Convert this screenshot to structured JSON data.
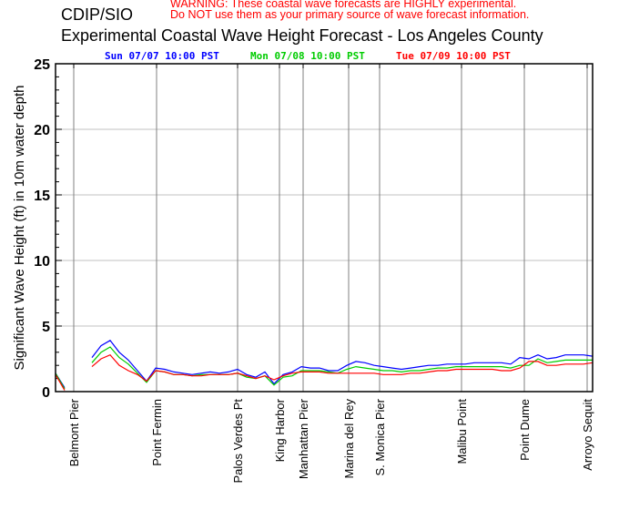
{
  "header": {
    "organization": "CDIP/SIO",
    "warning_line1": "WARNING:  These coastal wave forecasts are HIGHLY experimental.",
    "warning_line2": "Do NOT use them as your primary source of wave forecast information.",
    "title": "Experimental Coastal Wave Height Forecast - Los Angeles County"
  },
  "colors": {
    "warning": "#ff0000",
    "grid": "#c0c0c0",
    "station_line": "#808080"
  },
  "chart_data": {
    "type": "line",
    "title": "Experimental Coastal Wave Height Forecast - Los Angeles County",
    "ylabel": "Significant Wave Height (ft) in 10m water depth",
    "xlabel": "",
    "ylim": [
      0,
      25
    ],
    "yticks": [
      "0",
      "5",
      "10",
      "15",
      "20",
      "25"
    ],
    "grid": "horizontal",
    "stations": [
      {
        "name": "Belmont Pier",
        "at": 2.0
      },
      {
        "name": "Point Fermin",
        "at": 11.1
      },
      {
        "name": "Palos Verdes Pt",
        "at": 20.0
      },
      {
        "name": "King Harbor",
        "at": 24.6
      },
      {
        "name": "Manhattan Pier",
        "at": 27.2
      },
      {
        "name": "Marina del Rey",
        "at": 32.2
      },
      {
        "name": "S. Monica Pier",
        "at": 35.6
      },
      {
        "name": "Malibu Point",
        "at": 44.6
      },
      {
        "name": "Point Dume",
        "at": 51.5
      },
      {
        "name": "Arroyo Sequit",
        "at": 58.4
      }
    ],
    "series": [
      {
        "name": "Sun 07/07 10:00 PST",
        "color": "#0000ff",
        "values": [
          1.4,
          0.3,
          null,
          null,
          2.6,
          3.5,
          3.9,
          3.0,
          2.4,
          1.6,
          0.8,
          1.8,
          1.7,
          1.5,
          1.4,
          1.3,
          1.4,
          1.5,
          1.4,
          1.5,
          1.7,
          1.3,
          1.1,
          1.5,
          0.6,
          1.3,
          1.5,
          1.9,
          1.8,
          1.8,
          1.6,
          1.6,
          2.0,
          2.3,
          2.2,
          2.0,
          1.9,
          1.8,
          1.7,
          1.8,
          1.9,
          2.0,
          2.0,
          2.1,
          2.1,
          2.1,
          2.2,
          2.2,
          2.2,
          2.2,
          2.1,
          2.6,
          2.5,
          2.8,
          2.5,
          2.6,
          2.8,
          2.8,
          2.8,
          2.7
        ]
      },
      {
        "name": "Mon 07/08 10:00 PST",
        "color": "#00cc00",
        "values": [
          1.4,
          0.2,
          null,
          null,
          2.2,
          3.0,
          3.4,
          2.6,
          2.1,
          1.4,
          0.7,
          1.6,
          1.5,
          1.3,
          1.3,
          1.2,
          1.3,
          1.3,
          1.3,
          1.3,
          1.4,
          1.1,
          1.0,
          1.2,
          0.5,
          1.1,
          1.2,
          1.6,
          1.6,
          1.6,
          1.5,
          1.4,
          1.7,
          1.9,
          1.8,
          1.7,
          1.6,
          1.6,
          1.5,
          1.6,
          1.6,
          1.7,
          1.8,
          1.8,
          1.9,
          1.9,
          1.9,
          1.9,
          1.9,
          1.9,
          1.8,
          2.0,
          2.0,
          2.5,
          2.2,
          2.3,
          2.4,
          2.4,
          2.4,
          2.4
        ]
      },
      {
        "name": "Tue 07/09 10:00 PST",
        "color": "#ff0000",
        "values": [
          1.3,
          0.1,
          null,
          null,
          1.9,
          2.5,
          2.8,
          2.0,
          1.6,
          1.3,
          0.8,
          1.6,
          1.5,
          1.3,
          1.3,
          1.2,
          1.2,
          1.3,
          1.3,
          1.3,
          1.4,
          1.2,
          1.0,
          1.2,
          0.9,
          1.2,
          1.4,
          1.5,
          1.5,
          1.5,
          1.4,
          1.4,
          1.4,
          1.4,
          1.4,
          1.4,
          1.3,
          1.3,
          1.3,
          1.4,
          1.4,
          1.5,
          1.6,
          1.6,
          1.7,
          1.7,
          1.7,
          1.7,
          1.7,
          1.6,
          1.6,
          1.8,
          2.3,
          2.3,
          2.0,
          2.0,
          2.1,
          2.1,
          2.1,
          2.2
        ]
      }
    ]
  }
}
